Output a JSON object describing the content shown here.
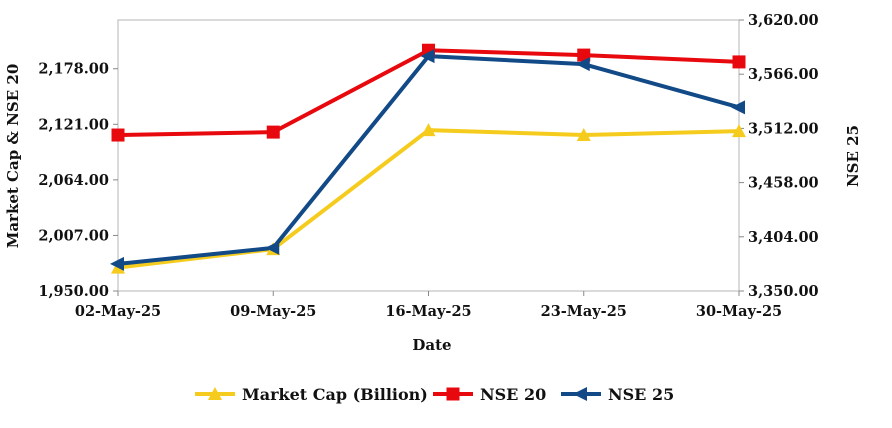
{
  "chart_data": {
    "type": "line",
    "x": [
      "02-May-25",
      "09-May-25",
      "16-May-25",
      "23-May-25",
      "30-May-25"
    ],
    "xlabel": "Date",
    "ylabel_left": "Market Cap & NSE 20",
    "ylabel_right": "NSE 25",
    "y_left_ticks": [
      "1,950.00",
      "2,007.00",
      "2,064.00",
      "2,121.00",
      "2,178.00"
    ],
    "y_right_ticks": [
      "3,350.00",
      "3,404.00",
      "3,458.00",
      "3,512.00",
      "3,566.00",
      "3,620.00"
    ],
    "ylim_left": [
      1950,
      2228
    ],
    "ylim_right": [
      3350,
      3620
    ],
    "grid": false,
    "legend_position": "bottom",
    "series": [
      {
        "name": "Market Cap (Billion)",
        "axis": "left",
        "color": "#F5CC1D",
        "marker": "triangle-up",
        "values": [
          1974,
          1993,
          2115,
          2110,
          2114
        ]
      },
      {
        "name": "NSE 20",
        "axis": "left",
        "color": "#E8090E",
        "marker": "square",
        "values": [
          2110,
          2113,
          2197,
          2192,
          2185
        ]
      },
      {
        "name": "NSE 25",
        "axis": "right",
        "color": "#114A87",
        "marker": "triangle-left",
        "values": [
          3377,
          3393,
          3584,
          3576,
          3533
        ]
      }
    ]
  }
}
